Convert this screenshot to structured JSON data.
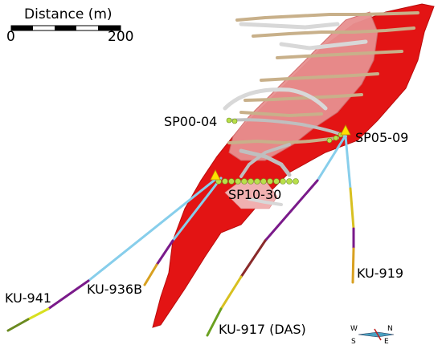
{
  "scale_bar": {
    "title": "Distance (m)",
    "min_label": "0",
    "max_label": "200"
  },
  "sites": {
    "sp00_04": "SP00-04",
    "sp05_09": "SP05-09",
    "sp10_30": "SP10-30",
    "ku_941": "KU-941",
    "ku_936b": "KU-936B",
    "ku_919": "KU-919",
    "ku_917": "KU-917 (DAS)"
  },
  "compass": {
    "w": "W",
    "n": "N",
    "s": "S",
    "e": "E"
  },
  "colors": {
    "ore_body_dark": "#e31414",
    "ore_body_light": "#e89090",
    "tunnel": "#d8d8d8",
    "drift": "#c8b08a",
    "borehole_primary": "#87ceeb",
    "borehole_secondary": "#7a1a8a",
    "sample_markers": "#b8e04a",
    "site_marker": "#ffe000"
  }
}
